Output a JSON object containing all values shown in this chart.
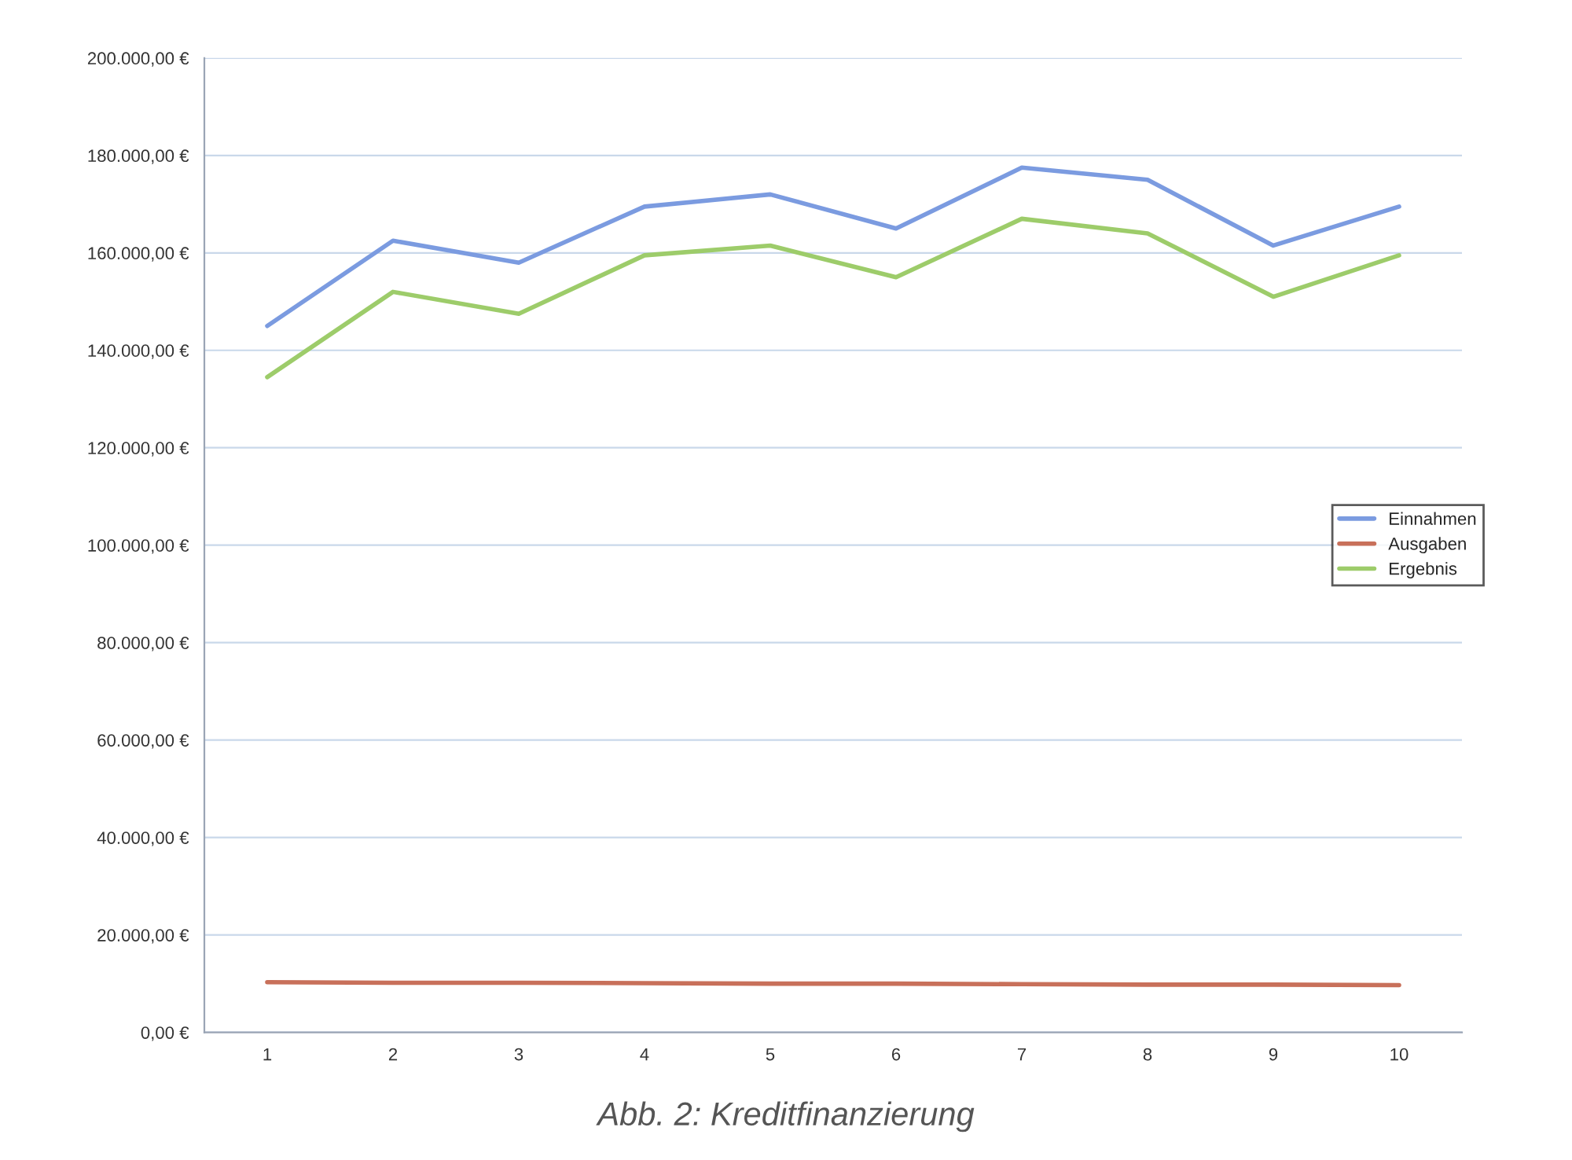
{
  "chart_data": {
    "type": "line",
    "title": "Abb. 2: Kreditfinanzierung",
    "categories": [
      "1",
      "2",
      "3",
      "4",
      "5",
      "6",
      "7",
      "8",
      "9",
      "10"
    ],
    "series": [
      {
        "name": "Einnahmen",
        "color": "#7b9be0",
        "values": [
          145000,
          162500,
          158000,
          169500,
          172000,
          165000,
          177500,
          175000,
          161500,
          169500
        ]
      },
      {
        "name": "Ausgaben",
        "color": "#c8705a",
        "values": [
          10300,
          10200,
          10200,
          10100,
          10000,
          10000,
          9900,
          9800,
          9800,
          9700
        ]
      },
      {
        "name": "Ergebnis",
        "color": "#9dcc6a",
        "values": [
          134500,
          152000,
          147500,
          159500,
          161500,
          155000,
          167000,
          164000,
          151000,
          159500
        ]
      }
    ],
    "ylim": [
      0,
      200000
    ],
    "yticks": [
      {
        "value": 0,
        "label": "0,00 €"
      },
      {
        "value": 20000,
        "label": "20.000,00 €"
      },
      {
        "value": 40000,
        "label": "40.000,00 €"
      },
      {
        "value": 60000,
        "label": "60.000,00 €"
      },
      {
        "value": 80000,
        "label": "80.000,00 €"
      },
      {
        "value": 100000,
        "label": "100.000,00 €"
      },
      {
        "value": 120000,
        "label": "120.000,00 €"
      },
      {
        "value": 140000,
        "label": "140.000,00 €"
      },
      {
        "value": 160000,
        "label": "160.000,00 €"
      },
      {
        "value": 180000,
        "label": "180.000,00 €"
      },
      {
        "value": 200000,
        "label": "200.000,00 €"
      }
    ],
    "grid": "y",
    "legend": "right",
    "marker": "none",
    "line_style": "solid"
  }
}
